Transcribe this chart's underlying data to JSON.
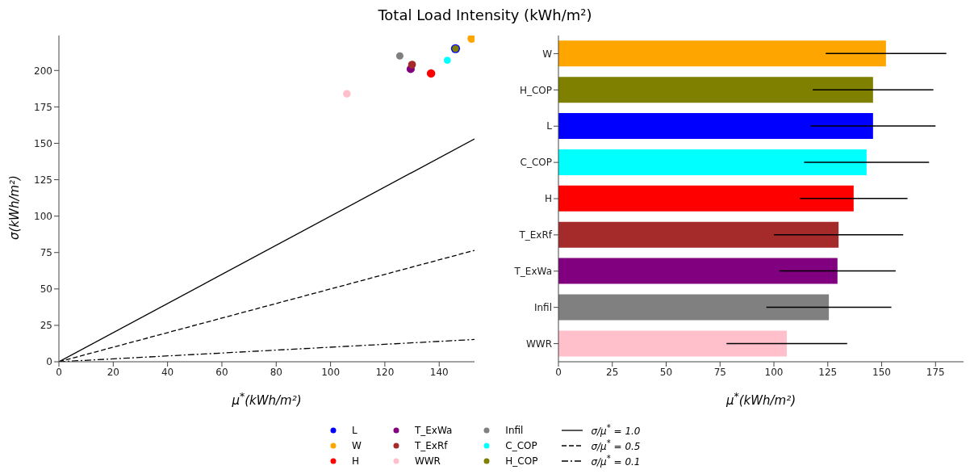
{
  "chart_data": [
    {
      "type": "scatter",
      "title": "Total Load Intensity (kWh/m²)",
      "xlabel": "μ$^{*}$(kWh/m²)",
      "ylabel": "σ(kWh/m²)",
      "xlim": [
        0,
        153
      ],
      "xticks": [
        0,
        20,
        40,
        60,
        80,
        100,
        120,
        140
      ],
      "ylim": [
        0,
        224
      ],
      "yticks": [
        0,
        25,
        50,
        75,
        100,
        125,
        150,
        175,
        200
      ],
      "marker": "circle",
      "legend": "bottom",
      "series": [
        {
          "name": "L",
          "color": "#0000ff",
          "x": [
            146
          ],
          "values": [
            215
          ]
        },
        {
          "name": "W",
          "color": "#ffa500",
          "x": [
            152
          ],
          "values": [
            222
          ]
        },
        {
          "name": "H",
          "color": "#ff0000",
          "x": [
            137
          ],
          "values": [
            198
          ]
        },
        {
          "name": "T_ExWa",
          "color": "#800080",
          "x": [
            129.5
          ],
          "values": [
            201
          ]
        },
        {
          "name": "T_ExRf",
          "color": "#a52a2a",
          "x": [
            130
          ],
          "values": [
            204
          ]
        },
        {
          "name": "WWR",
          "color": "#ffc0cb",
          "x": [
            106
          ],
          "values": [
            184
          ]
        },
        {
          "name": "Infil",
          "color": "#808080",
          "x": [
            125.5
          ],
          "values": [
            210
          ]
        },
        {
          "name": "C_COP",
          "color": "#00ffff",
          "x": [
            143
          ],
          "values": [
            207
          ]
        },
        {
          "name": "H_COP",
          "color": "#808000",
          "x": [
            146
          ],
          "values": [
            215
          ]
        },
        {
          "name": "σ/μ$^{*}$ = 1.0",
          "type": "line",
          "marker": "none",
          "line_style": "solid",
          "color": "#000000",
          "x": [
            0,
            153
          ],
          "values": [
            0,
            153
          ]
        },
        {
          "name": "σ/μ$^{*}$ = 0.5",
          "type": "line",
          "marker": "none",
          "line_style": "dashed",
          "color": "#000000",
          "x": [
            0,
            153
          ],
          "values": [
            0,
            76.5
          ]
        },
        {
          "name": "σ/μ$^{*}$ = 0.1",
          "type": "line",
          "marker": "none",
          "line_style": "dashdot",
          "color": "#000000",
          "x": [
            0,
            153
          ],
          "values": [
            0,
            15.3
          ]
        }
      ]
    },
    {
      "type": "bar",
      "orientation": "horizontal",
      "xlabel": "μ$^{*}$(kWh/m²)",
      "xlim": [
        0,
        188
      ],
      "xticks": [
        0,
        25,
        50,
        75,
        100,
        125,
        150,
        175
      ],
      "categories": [
        "W",
        "H_COP",
        "L",
        "C_COP",
        "H",
        "T_ExRf",
        "T_ExWa",
        "Infil",
        "WWR"
      ],
      "values": [
        152,
        146,
        146,
        143,
        137,
        130,
        129.5,
        125.5,
        106
      ],
      "colors": [
        "#ffa500",
        "#808000",
        "#0000ff",
        "#00ffff",
        "#ff0000",
        "#a52a2a",
        "#800080",
        "#808080",
        "#ffc0cb"
      ],
      "errors": [
        28,
        28,
        29,
        29,
        25,
        30,
        27,
        29,
        28
      ]
    }
  ]
}
